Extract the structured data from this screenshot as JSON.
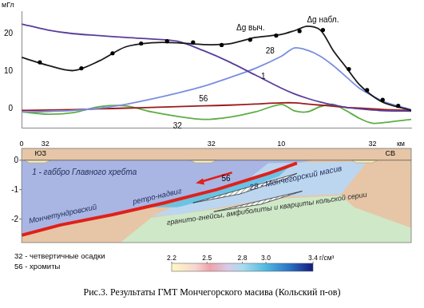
{
  "chart_data": {
    "type": "line",
    "y_label": "мГл",
    "x": [
      0,
      1,
      2,
      3,
      4,
      5,
      6,
      7,
      8,
      9,
      10,
      10.5,
      11,
      11.5,
      12,
      12.5,
      13,
      13.5,
      14,
      15
    ],
    "xlim": [
      0,
      15
    ],
    "ylim": [
      -5,
      26
    ],
    "yticks": [
      0,
      10,
      20
    ],
    "tick_labels": "y",
    "grid": false,
    "series": [
      {
        "name": "Δg набл.",
        "type": "scatter",
        "marker": "circle",
        "color": "#000000",
        "x": [
          0.7,
          2.3,
          3.5,
          4.6,
          5.6,
          6.6,
          7.7,
          8.8,
          9.8,
          10.7,
          11.6,
          12.6,
          13.3,
          13.9,
          14.5
        ],
        "values": [
          12.4,
          10.8,
          14.8,
          17.4,
          18.0,
          17.7,
          17.0,
          18.4,
          19.5,
          20.7,
          21.0,
          10.6,
          5.0,
          2.4,
          0.8
        ]
      },
      {
        "name": "Δg выч.",
        "type": "line",
        "color": "#1a1a1a",
        "values": [
          13.7,
          11.6,
          10.2,
          12.8,
          16.5,
          17.6,
          17.6,
          17.1,
          17.3,
          19.0,
          19.8,
          20.8,
          22.0,
          21.0,
          15.5,
          11.0,
          6.5,
          3.5,
          1.5,
          -0.4
        ]
      },
      {
        "name": "1",
        "type": "line",
        "color": "#5a3d9a",
        "values": [
          22.6,
          21.0,
          20.0,
          19.5,
          19.0,
          18.6,
          18.0,
          15.5,
          12.5,
          9.0,
          5.5,
          4.0,
          2.8,
          1.8,
          1.0,
          0.4,
          0,
          -0.3,
          -0.5,
          -0.6
        ]
      },
      {
        "name": "28",
        "type": "line",
        "color": "#7a8ee0",
        "values": [
          -0.8,
          -0.7,
          -0.4,
          0.2,
          1.2,
          2.6,
          4.2,
          6.0,
          8.3,
          10.8,
          14.0,
          16.2,
          15.6,
          14.0,
          11.5,
          8.5,
          5.5,
          3.5,
          1.8,
          -0.2
        ]
      },
      {
        "name": "56",
        "type": "line",
        "color": "#9b1b1b",
        "values": [
          -0.4,
          -0.3,
          -0.2,
          0,
          0.2,
          0.4,
          0.6,
          0.8,
          1.0,
          1.3,
          1.6,
          1.6,
          1.3,
          1.0,
          0.7,
          0.4,
          0.2,
          0,
          -0.2,
          -0.4
        ]
      },
      {
        "name": "32",
        "type": "line",
        "color": "#5cae44",
        "values": [
          -0.8,
          -1.4,
          -1.0,
          0.6,
          0.8,
          -0.8,
          -2.0,
          -2.8,
          -2.2,
          -0.8,
          1.2,
          -0.5,
          -0.8,
          0.6,
          1.2,
          -0.5,
          -2.5,
          -3.8,
          -3.6,
          -2.8
        ]
      }
    ]
  },
  "section": {
    "directions": [
      "ЮЗ",
      "СВ"
    ],
    "sediment_label": "32",
    "xticks": [
      0,
      10
    ],
    "x_unit": "км",
    "zlim": [
      -2.8,
      0.4
    ],
    "zticks": [
      0,
      -1,
      -2
    ],
    "unit_labels": {
      "gabbro": "1 - габбро Главного хребта",
      "fault": "Мончетундровский",
      "thrust": "ретро-надвиг",
      "chromite": "56",
      "massif": "28 - Мончегорский масив",
      "basement": "гранито-гнейсы, амфиболиты и кварциты кольской серии"
    }
  },
  "legend_items": [
    "32 - четвертичные осадки",
    "56 - хромиты"
  ],
  "colorbar": {
    "range": [
      2.2,
      3.4
    ],
    "ticks": [
      2.2,
      2.5,
      2.8,
      {
        "value": 3,
        "label": "3.0"
      },
      3.4
    ],
    "unit": "г/см³"
  },
  "caption": "Рис.3. Результаты ГМТ Мончегорского масива (Кольский п-ов)"
}
